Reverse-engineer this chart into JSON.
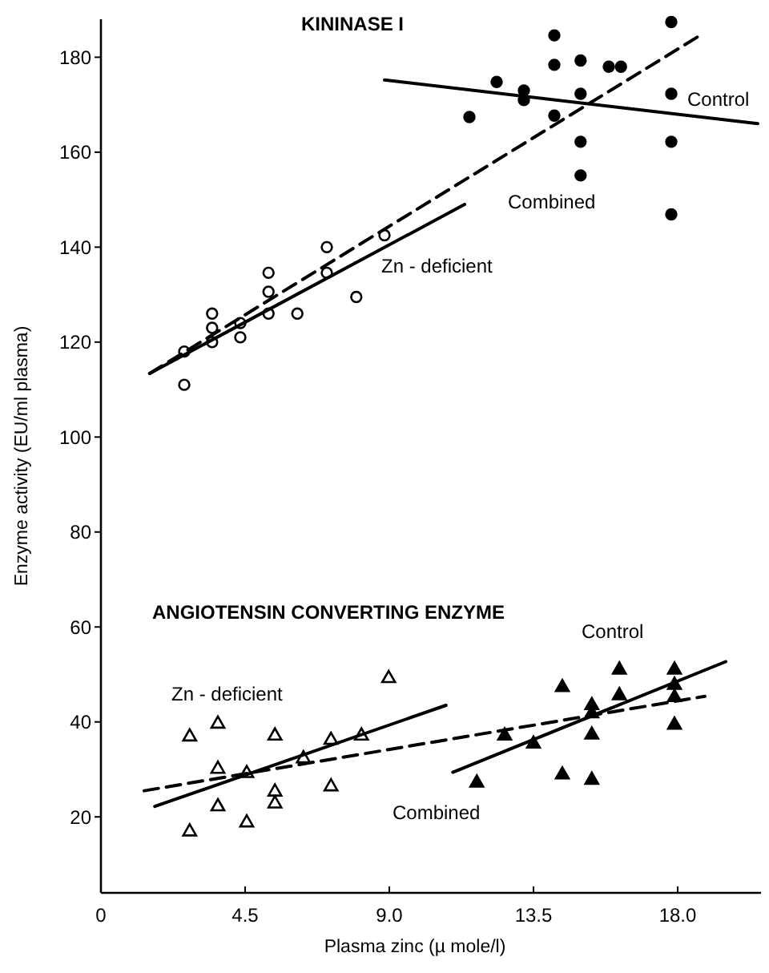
{
  "chart_data": {
    "type": "scatter",
    "xlabel": "Plasma zinc (µ mole/l)",
    "ylabel": "Enzyme activity (EU/ml plasma)",
    "xlim": [
      0,
      20.6
    ],
    "ylim": [
      4,
      188
    ],
    "xticks": [
      0,
      {
        "value": 4.5,
        "label": "4.5"
      },
      {
        "value": 9,
        "label": "9.0"
      },
      {
        "value": 13.5,
        "label": "13.5"
      },
      {
        "value": 18,
        "label": "18.0"
      }
    ],
    "yticks": [
      20,
      40,
      60,
      80,
      100,
      120,
      140,
      160,
      180
    ],
    "grid": false,
    "series": [
      {
        "marker": "circle",
        "color": "#ffffff",
        "x": [
          2.6,
          2.6,
          3.47,
          3.47,
          3.47,
          4.35,
          4.35,
          5.23,
          5.23,
          5.23,
          6.13,
          7.05,
          7.05,
          7.97,
          8.85
        ],
        "values": [
          118,
          111,
          126,
          123,
          120,
          124,
          121,
          134.6,
          130.6,
          126,
          126,
          140,
          134.6,
          129.5,
          142.5
        ]
      },
      {
        "marker": "circle",
        "color": "#000000",
        "x": [
          11.5,
          12.35,
          13.2,
          13.2,
          14.15,
          14.15,
          14.15,
          14.97,
          14.97,
          14.97,
          14.97,
          15.85,
          16.23,
          17.8,
          17.8,
          17.8,
          17.8
        ],
        "values": [
          167.4,
          174.8,
          173,
          171,
          184.6,
          178.4,
          167.7,
          179.3,
          172.3,
          162.2,
          155.1,
          178,
          178,
          187.4,
          172.3,
          162.2,
          146.9
        ]
      },
      {
        "type": "line",
        "line_style": "solid",
        "marker": "none",
        "color": "#000000",
        "x": [
          8.85,
          20.5
        ],
        "values": [
          175.2,
          166
        ]
      },
      {
        "type": "line",
        "line_style": "dashed",
        "marker": "none",
        "color": "#000000",
        "x": [
          1.52,
          18.7
        ],
        "values": [
          113.4,
          184.6
        ]
      },
      {
        "type": "line",
        "line_style": "solid",
        "marker": "none",
        "color": "#000000",
        "x": [
          1.52,
          11.35
        ],
        "values": [
          113.4,
          149
        ]
      },
      {
        "marker": "triangle",
        "color": "#ffffff",
        "x": [
          2.77,
          2.77,
          3.65,
          3.65,
          3.65,
          4.55,
          4.55,
          5.43,
          5.43,
          5.43,
          6.32,
          7.18,
          7.18,
          8.13,
          8.98
        ],
        "values": [
          37.1,
          17.1,
          39.8,
          30.3,
          22.4,
          29.4,
          19,
          37.3,
          25.5,
          23,
          32.5,
          36.4,
          26.6,
          37.3,
          49.4
        ]
      },
      {
        "marker": "triangle",
        "color": "#000000",
        "x": [
          11.73,
          12.6,
          13.5,
          14.4,
          14.4,
          15.32,
          15.32,
          15.32,
          15.32,
          16.18,
          16.18,
          17.9,
          17.9,
          17.9,
          17.9
        ],
        "values": [
          27.4,
          37.3,
          35.6,
          47.5,
          29.1,
          43.7,
          42,
          37.5,
          28,
          51.2,
          45.8,
          51.2,
          48,
          45.4,
          39.6
        ]
      },
      {
        "type": "line",
        "line_style": "solid",
        "marker": "none",
        "color": "#000000",
        "x": [
          1.68,
          10.77
        ],
        "values": [
          22.2,
          43.5
        ]
      },
      {
        "type": "line",
        "line_style": "dashed",
        "marker": "none",
        "color": "#000000",
        "x": [
          1.35,
          18.85
        ],
        "values": [
          25.5,
          45.4
        ]
      },
      {
        "type": "line",
        "line_style": "solid",
        "marker": "none",
        "color": "#000000",
        "x": [
          10.98,
          19.5
        ],
        "values": [
          29.4,
          52.7
        ]
      }
    ],
    "annotations": [
      "KININASE I",
      "Control",
      "Combined",
      "Zn - deficient",
      "ANGIOTENSIN CONVERTING ENZYME",
      "Control",
      "Zn - deficient",
      "Combined"
    ]
  }
}
